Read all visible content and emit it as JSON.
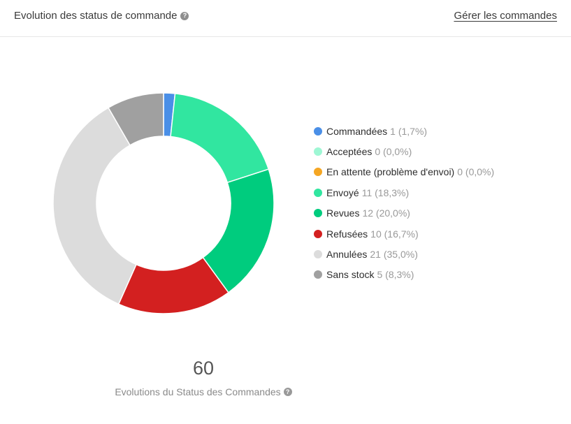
{
  "header": {
    "title": "Evolution des status de commande",
    "link": "Gérer les commandes",
    "help_icon": "question-circle-icon"
  },
  "chart_data": {
    "type": "pie",
    "total": "60",
    "caption": "Evolutions du Status des Commandes",
    "slices": [
      {
        "label": "Commandées",
        "value": 1,
        "percent": "1,7%",
        "color": "#4a8fe7"
      },
      {
        "label": "Acceptées",
        "value": 0,
        "percent": "0,0%",
        "color": "#9ef7d4"
      },
      {
        "label": "En attente (problème d'envoi)",
        "value": 0,
        "percent": "0,0%",
        "color": "#f5a623"
      },
      {
        "label": "Envoyé",
        "value": 11,
        "percent": "18,3%",
        "color": "#31e6a0"
      },
      {
        "label": "Revues",
        "value": 12,
        "percent": "20,0%",
        "color": "#00cc7e"
      },
      {
        "label": "Refusées",
        "value": 10,
        "percent": "16,7%",
        "color": "#d32020"
      },
      {
        "label": "Annulées",
        "value": 21,
        "percent": "35,0%",
        "color": "#dcdcdc"
      },
      {
        "label": "Sans stock",
        "value": 5,
        "percent": "8,3%",
        "color": "#a0a0a0"
      }
    ]
  }
}
